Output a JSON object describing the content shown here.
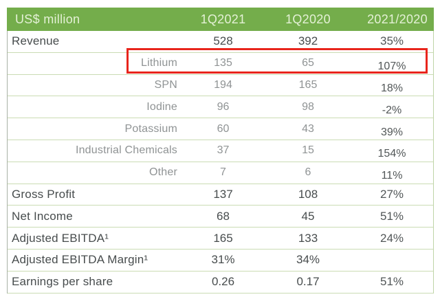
{
  "chart_data": {
    "type": "table",
    "title": "US$ million",
    "columns": [
      "US$ million",
      "1Q2021",
      "1Q2020",
      "2021/2020"
    ],
    "rows": [
      {
        "label": "Revenue",
        "v1": "528",
        "v2": "392",
        "chg": "35%",
        "style": "main",
        "highlighted": false
      },
      {
        "label": "Lithium",
        "v1": "135",
        "v2": "65",
        "chg": "107%",
        "style": "sub",
        "highlighted": true
      },
      {
        "label": "SPN",
        "v1": "194",
        "v2": "165",
        "chg": "18%",
        "style": "sub",
        "highlighted": false
      },
      {
        "label": "Iodine",
        "v1": "96",
        "v2": "98",
        "chg": "-2%",
        "style": "sub",
        "highlighted": false
      },
      {
        "label": "Potassium",
        "v1": "60",
        "v2": "43",
        "chg": "39%",
        "style": "sub",
        "highlighted": false
      },
      {
        "label": "Industrial Chemicals",
        "v1": "37",
        "v2": "15",
        "chg": "154%",
        "style": "sub",
        "highlighted": false
      },
      {
        "label": "Other",
        "v1": "7",
        "v2": "6",
        "chg": "11%",
        "style": "sub",
        "highlighted": false
      },
      {
        "label": "Gross Profit",
        "v1": "137",
        "v2": "108",
        "chg": "27%",
        "style": "main",
        "highlighted": false
      },
      {
        "label": "Net Income",
        "v1": "68",
        "v2": "45",
        "chg": "51%",
        "style": "main",
        "highlighted": false
      },
      {
        "label": "Adjusted EBITDA¹",
        "v1": "165",
        "v2": "133",
        "chg": "24%",
        "style": "main",
        "highlighted": false
      },
      {
        "label": "Adjusted EBITDA Margin¹",
        "v1": "31%",
        "v2": "34%",
        "chg": "",
        "style": "main",
        "highlighted": false
      },
      {
        "label": "Earnings per share",
        "v1": "0.26",
        "v2": "0.17",
        "chg": "51%",
        "style": "main",
        "highlighted": false
      }
    ]
  },
  "colors": {
    "header_green": "#74ad4b",
    "highlight_red": "#e8251c",
    "row_separator": "#cadcb3"
  }
}
